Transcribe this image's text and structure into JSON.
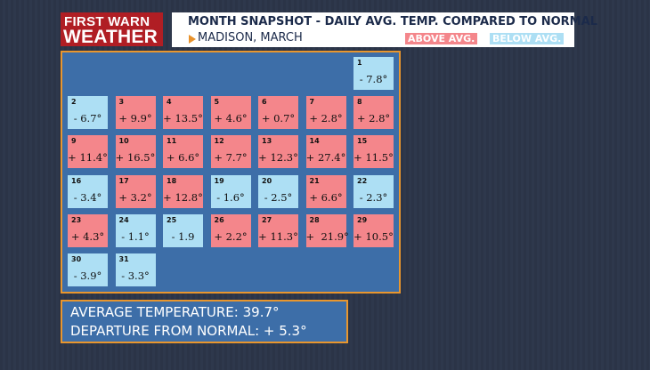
{
  "logo": [
    "FIRST WARN",
    "WEATHER"
  ],
  "header": {
    "title": "MONTH SNAPSHOT - DAILY AVG. TEMP. COMPARED TO NORMAL",
    "subtitle": "MADISON, MARCH"
  },
  "legend": [
    {
      "label": "ABOVE AVG.",
      "color": "#f4868b"
    },
    {
      "label": "BELOW AVG.",
      "color": "#addff4"
    }
  ],
  "days": [
    {
      "day": "1",
      "label": "- 7.8°",
      "color": "#addff4"
    },
    {
      "day": "2",
      "label": "- 6.7°",
      "color": "#addff4"
    },
    {
      "day": "3",
      "label": "+ 9.9°",
      "color": "#f4868b"
    },
    {
      "day": "4",
      "label": "+ 13.5°",
      "color": "#f4868b"
    },
    {
      "day": "5",
      "label": "+ 4.6°",
      "color": "#f4868b"
    },
    {
      "day": "6",
      "label": "+ 0.7°",
      "color": "#f4868b"
    },
    {
      "day": "7",
      "label": "+ 2.8°",
      "color": "#f4868b"
    },
    {
      "day": "8",
      "label": "+ 2.8°",
      "color": "#f4868b"
    },
    {
      "day": "9",
      "label": "+ 11.4°",
      "color": "#f4868b"
    },
    {
      "day": "10",
      "label": "+ 16.5°",
      "color": "#f4868b"
    },
    {
      "day": "11",
      "label": "+ 6.6°",
      "color": "#f4868b"
    },
    {
      "day": "12",
      "label": "+ 7.7°",
      "color": "#f4868b"
    },
    {
      "day": "13",
      "label": "+ 12.3°",
      "color": "#f4868b"
    },
    {
      "day": "14",
      "label": "+ 27.4°",
      "color": "#f4868b"
    },
    {
      "day": "15",
      "label": "+ 11.5°",
      "color": "#f4868b"
    },
    {
      "day": "16",
      "label": "- 3.4°",
      "color": "#addff4"
    },
    {
      "day": "17",
      "label": "+ 3.2°",
      "color": "#f4868b"
    },
    {
      "day": "18",
      "label": "+ 12.8°",
      "color": "#f4868b"
    },
    {
      "day": "19",
      "label": "- 1.6°",
      "color": "#addff4"
    },
    {
      "day": "20",
      "label": "- 2.5°",
      "color": "#addff4"
    },
    {
      "day": "21",
      "label": "+ 6.6°",
      "color": "#f4868b"
    },
    {
      "day": "22",
      "label": "- 2.3°",
      "color": "#addff4"
    },
    {
      "day": "23",
      "label": "+ 4.3°",
      "color": "#f4868b"
    },
    {
      "day": "24",
      "label": "- 1.1°",
      "color": "#addff4"
    },
    {
      "day": "25",
      "label": "- 1.9",
      "color": "#addff4"
    },
    {
      "day": "26",
      "label": "+ 2.2°",
      "color": "#f4868b"
    },
    {
      "day": "27",
      "label": "+ 11.3°",
      "color": "#f4868b"
    },
    {
      "day": "28",
      "label": "+  21.9°",
      "color": "#f4868b"
    },
    {
      "day": "29",
      "label": "+ 10.5°",
      "color": "#f4868b"
    },
    {
      "day": "30",
      "label": "- 3.9°",
      "color": "#addff4"
    },
    {
      "day": "31",
      "label": "- 3.3°",
      "color": "#addff4"
    }
  ],
  "summary": [
    "AVERAGE TEMPERATURE: 39.7°",
    "DEPARTURE FROM NORMAL: + 5.3°"
  ]
}
